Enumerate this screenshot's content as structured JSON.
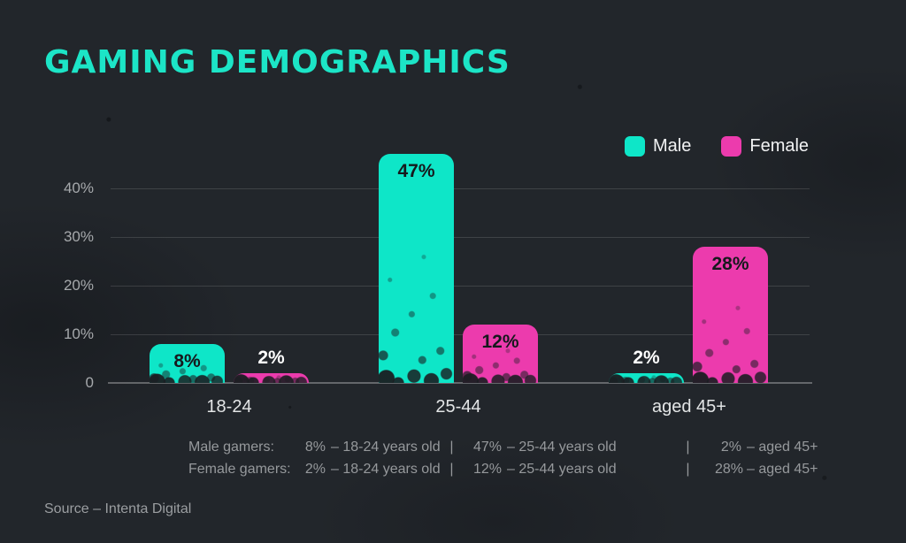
{
  "page": {
    "title": "GAMING DEMOGRAPHICS",
    "source": "Source – Intenta Digital",
    "colors": {
      "background": "#22262b",
      "title": "#1ce5c7",
      "male": "#0ee6c8",
      "female": "#ec3bad"
    }
  },
  "legend": [
    {
      "label": "Male",
      "color": "#0ee6c8"
    },
    {
      "label": "Female",
      "color": "#ec3bad"
    }
  ],
  "chart_data": {
    "type": "bar",
    "title": "GAMING DEMOGRAPHICS",
    "categories": [
      "18-24",
      "25-44",
      "aged 45+"
    ],
    "series": [
      {
        "name": "Male",
        "color": "#0ee6c8",
        "values": [
          8,
          47,
          2
        ]
      },
      {
        "name": "Female",
        "color": "#ec3bad",
        "values": [
          2,
          12,
          28
        ]
      }
    ],
    "value_suffix": "%",
    "yticks_top_to_bottom": [
      "40%",
      "30%",
      "20%",
      "10%",
      "0"
    ],
    "ylim": [
      0,
      48
    ],
    "grid": true,
    "legend_position": "top-right"
  },
  "summary": {
    "separator": "|",
    "rows": [
      {
        "label": "Male gamers:",
        "segments": [
          {
            "value": "8%",
            "text": "– 18-24 years old"
          },
          {
            "value": "47%",
            "text": "– 25-44 years old"
          },
          {
            "value": "2%",
            "text": "– aged 45+"
          }
        ]
      },
      {
        "label": "Female gamers:",
        "segments": [
          {
            "value": "2%",
            "text": "– 18-24 years old"
          },
          {
            "value": "12%",
            "text": "– 25-44 years old"
          },
          {
            "value": "28%",
            "text": "– aged 45+"
          }
        ]
      }
    ]
  }
}
